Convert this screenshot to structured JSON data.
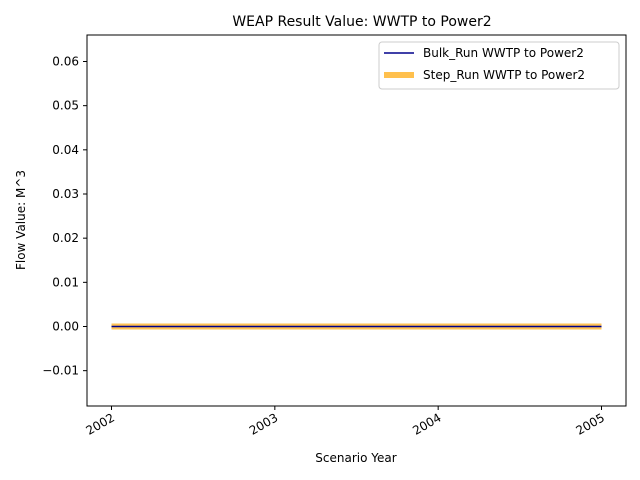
{
  "chart_data": {
    "type": "line",
    "title": "WEAP Result Value: WWTP to Power2",
    "xlabel": "Scenario Year",
    "ylabel": "Flow Value: M^3",
    "x_ticks": [
      "2002",
      "2003",
      "2004",
      "2005"
    ],
    "x": [
      2002,
      2005
    ],
    "xlim": [
      2001.85,
      2005.15
    ],
    "ylim": [
      -0.018,
      0.066
    ],
    "y_ticks": [
      "−0.01",
      "0.00",
      "0.01",
      "0.02",
      "0.03",
      "0.04",
      "0.05",
      "0.06"
    ],
    "y_tick_values": [
      -0.01,
      0.0,
      0.01,
      0.02,
      0.03,
      0.04,
      0.05,
      0.06
    ],
    "legend_position": "top-right",
    "grid": false,
    "series": [
      {
        "name": "Step_Run WWTP to Power2",
        "values": [
          0,
          0
        ],
        "color": "#ffc04d",
        "style": "thick"
      },
      {
        "name": "Bulk_Run WWTP to Power2",
        "values": [
          0,
          0
        ],
        "color": "#00008b",
        "style": "thin"
      }
    ]
  }
}
